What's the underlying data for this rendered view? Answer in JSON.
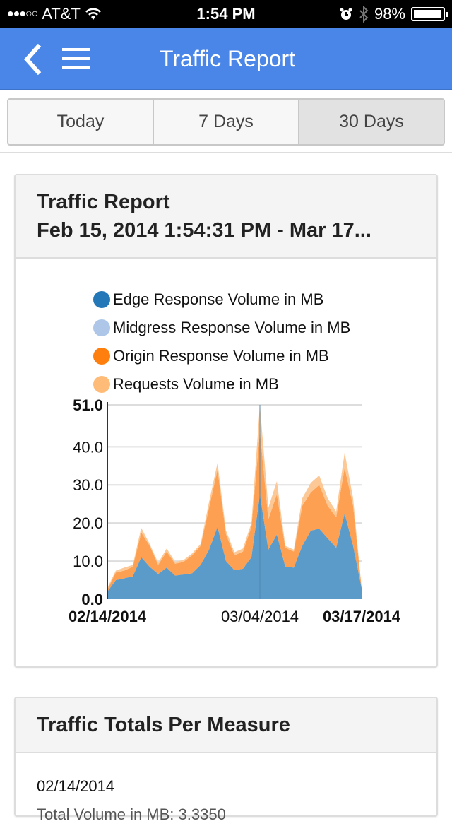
{
  "status_bar": {
    "signal": "●●●○○",
    "carrier": "AT&T",
    "time": "1:54 PM",
    "battery_pct": "98%"
  },
  "navbar": {
    "title": "Traffic Report",
    "back_icon": "chevron-left-icon",
    "menu_icon": "hamburger-menu-icon",
    "background": "#4a86e8"
  },
  "segments": [
    {
      "label": "Today",
      "selected": false
    },
    {
      "label": "7 Days",
      "selected": false
    },
    {
      "label": "30 Days",
      "selected": true
    }
  ],
  "report_card": {
    "title": "Traffic Report",
    "range": "Feb 15, 2014 1:54:31 PM - Mar 17..."
  },
  "chart_data": {
    "type": "area",
    "stacked": true,
    "title": "",
    "xlabel": "",
    "ylabel": "",
    "ylim": [
      0,
      51
    ],
    "yticks": [
      "0.0",
      "10.0",
      "20.0",
      "30.0",
      "40.0",
      "51.0"
    ],
    "xtick_labels": [
      "02/14/2014",
      "03/04/2014",
      "03/17/2014"
    ],
    "legend_position": "top",
    "grid": true,
    "x": [
      "02/14",
      "02/15",
      "02/16",
      "02/17",
      "02/18",
      "02/19",
      "02/20",
      "02/21",
      "02/22",
      "02/23",
      "02/24",
      "02/25",
      "02/26",
      "02/27",
      "02/28",
      "03/01",
      "03/02",
      "03/03",
      "03/04",
      "03/05",
      "03/06",
      "03/07",
      "03/08",
      "03/09",
      "03/10",
      "03/11",
      "03/12",
      "03/13",
      "03/14",
      "03/15",
      "03/17"
    ],
    "series": [
      {
        "name": "Edge Response Volume in MB",
        "color": "#5b9bca",
        "legend_color": "#2478b8",
        "values": [
          2,
          5,
          5.5,
          6,
          11,
          8.5,
          6.6,
          8.3,
          6.2,
          6.5,
          6.8,
          9,
          13,
          19,
          10,
          7.6,
          8,
          11,
          27.5,
          13,
          17,
          8.5,
          8.3,
          14,
          18,
          18.5,
          16,
          13.5,
          22.5,
          14,
          3
        ]
      },
      {
        "name": "Midgress Response Volume in MB",
        "color": "#aec7e8",
        "legend_color": "#aec7e8",
        "values": [
          0,
          0,
          0,
          0,
          0,
          0,
          0,
          0,
          0,
          0,
          0,
          0,
          0,
          0,
          0,
          0,
          0,
          0,
          0,
          0,
          0,
          0,
          0,
          0,
          0,
          0,
          0,
          0,
          0,
          0,
          0
        ]
      },
      {
        "name": "Origin Response Volume in MB",
        "color": "#fda052",
        "legend_color": "#ff7f0e",
        "values": [
          0.5,
          2,
          2,
          2.5,
          6.5,
          5.5,
          2.4,
          4.2,
          3.1,
          3.3,
          4.7,
          5,
          11,
          15,
          7,
          3.9,
          4.5,
          8,
          16.5,
          8,
          10.5,
          5,
          4.2,
          10.5,
          10,
          11.5,
          8.5,
          8,
          12,
          10.5,
          0
        ]
      },
      {
        "name": "Requests Volume in MB",
        "color": "#fcc896",
        "legend_color": "#ffbb78",
        "values": [
          0.5,
          0.5,
          0.8,
          0.5,
          1.2,
          0.5,
          0.5,
          0.8,
          0.5,
          0.5,
          0.5,
          0.5,
          1.5,
          1.8,
          1,
          0.8,
          0.8,
          1,
          7,
          3,
          3.5,
          0.5,
          0.5,
          2,
          2.5,
          2.5,
          2,
          1.5,
          4,
          2,
          0
        ]
      }
    ]
  },
  "totals_card": {
    "title": "Traffic Totals Per Measure",
    "date": "02/14/2014",
    "partial_line": "Total Volume in MB: 3.3350"
  }
}
